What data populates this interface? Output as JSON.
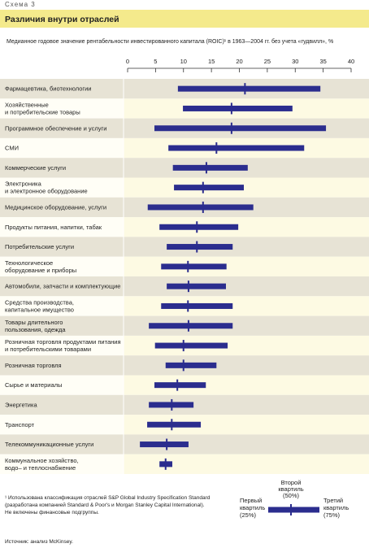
{
  "header": "Схема 3",
  "chart_data": {
    "type": "range-bar",
    "title": "Различия внутри отраслей",
    "subtitle": "Медианное годовое значение  рентабельности инвестированного капитала (ROIC)¹ в 1963—2004 гг. без учета «гудвилл», %",
    "categories": [
      "Фармацевтика, биотехнологии",
      "Хозяйственные\nи потребительские товары",
      "Программное обеспечение и услуги",
      "СМИ",
      "Коммерческие услуги",
      "Электроника\nи электронное оборудование",
      "Медицинское оборудование, услуги",
      "Продукты питания, напитки, табак",
      "Потребительские услуги",
      "Технологическое\nоборудование и приборы",
      "Автомобили, запчасти и комплектующие",
      "Средства производства,\nкапитальное имущество",
      "Товары длительного\nпользования, одежда",
      "Розничная торговля продуктами питания\nи потребительскими товарами",
      "Розничная торговля",
      "Сырье и материалы",
      "Энергетика",
      "Транспорт",
      "Телекоммуникационные услуги",
      "Коммунальное хозяйство,\nводо– и теплоснабжение"
    ],
    "series": [
      {
        "name": "Первый\nквартиль\n(25%)",
        "color": "#2b2d8e",
        "values": [
          9.0,
          9.9,
          4.8,
          7.3,
          8.1,
          8.3,
          3.6,
          5.7,
          7.0,
          6.0,
          7.0,
          6.0,
          3.8,
          4.9,
          6.8,
          4.8,
          3.8,
          3.5,
          2.2,
          5.7
        ]
      },
      {
        "name": "Второй\nквартиль\n(50%)",
        "color": "#2b2d8e",
        "values": [
          21.0,
          18.6,
          18.6,
          15.9,
          14.1,
          13.5,
          13.5,
          12.4,
          12.4,
          10.8,
          10.9,
          10.8,
          10.9,
          10.0,
          10.0,
          8.9,
          7.9,
          7.9,
          7.0,
          6.8
        ]
      },
      {
        "name": "Третий\nквартиль\n(75%)",
        "color": "#2b2d8e",
        "values": [
          34.5,
          29.5,
          35.5,
          31.6,
          21.5,
          20.8,
          22.5,
          19.8,
          18.8,
          17.7,
          17.6,
          18.8,
          18.8,
          17.9,
          15.9,
          14.0,
          11.8,
          13.1,
          10.9,
          8.0
        ]
      }
    ],
    "xlim": [
      0,
      40
    ],
    "xticks": [
      0,
      5,
      10,
      15,
      20,
      25,
      30,
      35,
      40
    ],
    "footnote": "¹ Использована классификация отраслей S&P Global Industry Specification Standard\n(разработана компанией Standard & Poor's и Morgan Stanley Capital International).\nНе включены финансовые подгруппы.",
    "source": "Источник: анализ McKinsey."
  }
}
